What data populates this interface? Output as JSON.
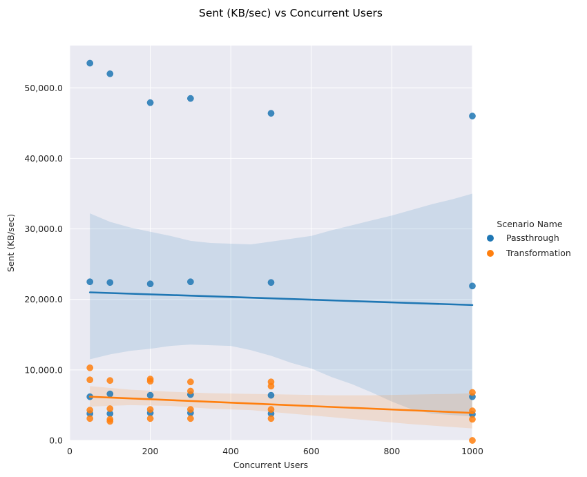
{
  "chart_data": {
    "type": "scatter",
    "title": "Sent (KB/sec) vs Concurrent Users",
    "xlabel": "Concurrent Users",
    "ylabel": "Sent (KB/sec)",
    "xlim": [
      0,
      1000
    ],
    "ylim": [
      0,
      56000
    ],
    "xticks": [
      0,
      200,
      400,
      600,
      800,
      1000
    ],
    "xtick_labels": [
      "0",
      "200",
      "400",
      "600",
      "800",
      "1000"
    ],
    "yticks": [
      0,
      10000,
      20000,
      30000,
      40000,
      50000
    ],
    "ytick_labels": [
      "0.0",
      "10,000.0",
      "20,000.0",
      "30,000.0",
      "40,000.0",
      "50,000.0"
    ],
    "grid": true,
    "background": "#eaeaf2",
    "legend": {
      "title": "Scenario Name",
      "placement": "right",
      "entries": [
        "Passthrough",
        "Transformation"
      ]
    },
    "series": [
      {
        "name": "Passthrough",
        "color": "#1f77b4",
        "points": [
          [
            50,
            53500
          ],
          [
            100,
            52000
          ],
          [
            200,
            47900
          ],
          [
            300,
            48500
          ],
          [
            500,
            46400
          ],
          [
            1000,
            46000
          ],
          [
            50,
            22500
          ],
          [
            100,
            22400
          ],
          [
            200,
            22200
          ],
          [
            300,
            22500
          ],
          [
            500,
            22400
          ],
          [
            1000,
            21900
          ],
          [
            50,
            6200
          ],
          [
            100,
            6600
          ],
          [
            200,
            6400
          ],
          [
            300,
            6500
          ],
          [
            500,
            6400
          ],
          [
            1000,
            6200
          ],
          [
            50,
            3800
          ],
          [
            100,
            3800
          ],
          [
            200,
            3900
          ],
          [
            300,
            3900
          ],
          [
            500,
            3800
          ],
          [
            1000,
            3700
          ]
        ],
        "regression": {
          "x": [
            50,
            1000
          ],
          "y": [
            21000,
            19200
          ]
        },
        "ci": {
          "x": [
            50,
            100,
            150,
            200,
            250,
            300,
            350,
            400,
            450,
            500,
            550,
            600,
            650,
            700,
            750,
            800,
            850,
            900,
            950,
            1000
          ],
          "upper": [
            32200,
            31000,
            30200,
            29600,
            29000,
            28300,
            28000,
            27900,
            27800,
            28200,
            28600,
            29000,
            29800,
            30500,
            31200,
            31900,
            32700,
            33500,
            34200,
            35000
          ],
          "lower": [
            11500,
            12200,
            12700,
            13000,
            13400,
            13600,
            13500,
            13400,
            12800,
            12000,
            11000,
            10200,
            9000,
            8000,
            6800,
            5500,
            4400,
            3800,
            3600,
            3400
          ]
        }
      },
      {
        "name": "Transformation",
        "color": "#ff7f0e",
        "points": [
          [
            50,
            10300
          ],
          [
            100,
            8500
          ],
          [
            200,
            8700
          ],
          [
            300,
            8300
          ],
          [
            500,
            8300
          ],
          [
            1000,
            6800
          ],
          [
            50,
            8600
          ],
          [
            200,
            8400
          ],
          [
            300,
            7000
          ],
          [
            500,
            7700
          ],
          [
            50,
            4300
          ],
          [
            100,
            4500
          ],
          [
            200,
            4400
          ],
          [
            300,
            4400
          ],
          [
            500,
            4400
          ],
          [
            1000,
            4200
          ],
          [
            50,
            3100
          ],
          [
            100,
            3000
          ],
          [
            200,
            3100
          ],
          [
            300,
            3100
          ],
          [
            500,
            3100
          ],
          [
            1000,
            3000
          ],
          [
            100,
            2700
          ],
          [
            1000,
            0
          ]
        ],
        "regression": {
          "x": [
            50,
            1000
          ],
          "y": [
            6200,
            3900
          ]
        },
        "ci": {
          "x": [
            50,
            150,
            250,
            350,
            450,
            550,
            650,
            750,
            850,
            950,
            1000
          ],
          "upper": [
            7700,
            7200,
            6900,
            6700,
            6600,
            6500,
            6400,
            6400,
            6500,
            6600,
            6700
          ],
          "lower": [
            4800,
            5000,
            4900,
            4500,
            4300,
            3800,
            3300,
            2800,
            2300,
            1900,
            1700
          ]
        }
      }
    ]
  }
}
